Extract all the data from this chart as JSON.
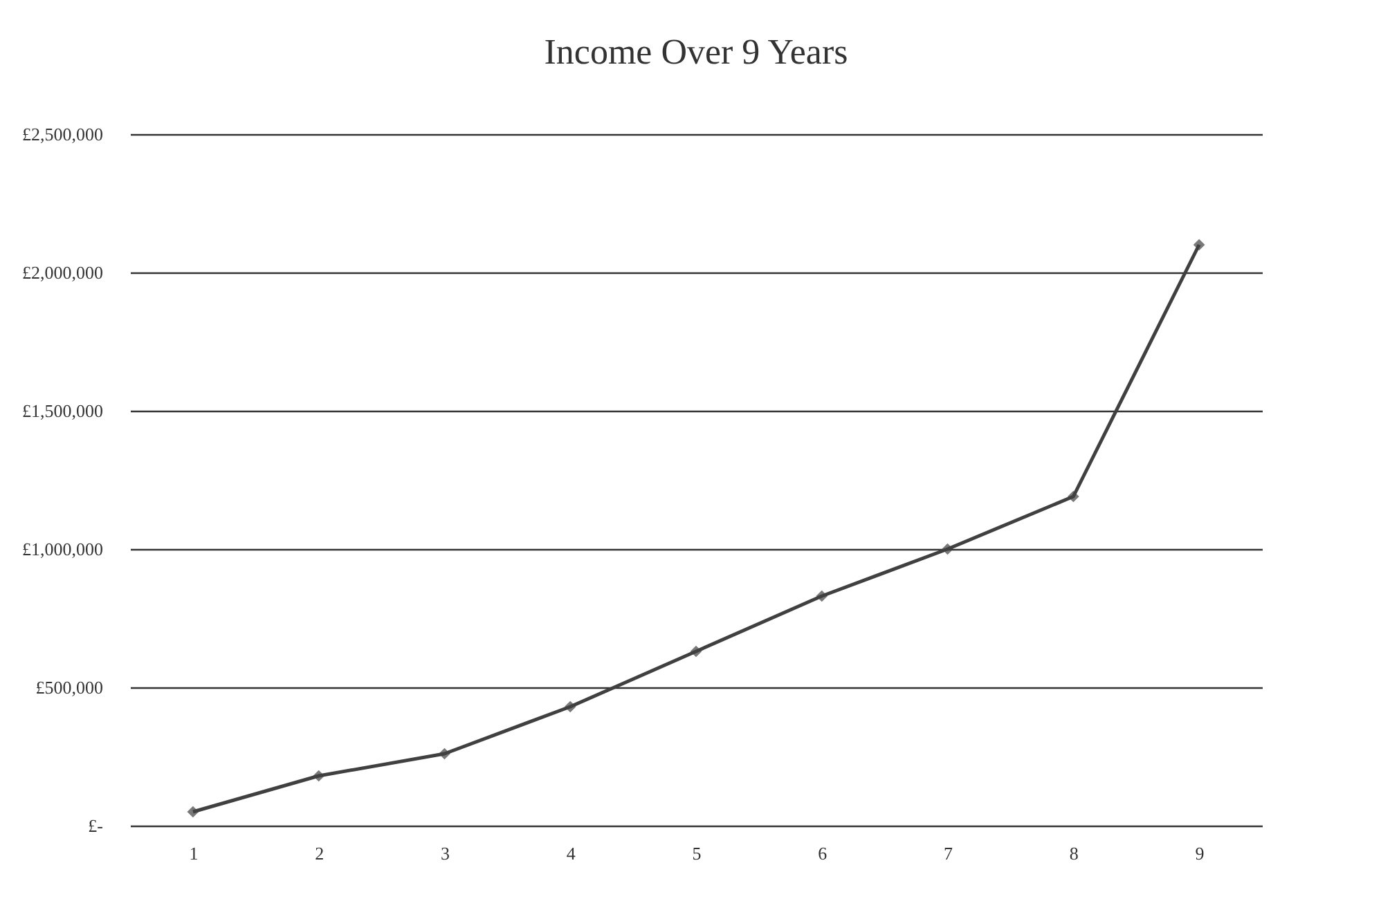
{
  "chart_data": {
    "type": "line",
    "title": "Income Over 9 Years",
    "categories": [
      "1",
      "2",
      "3",
      "4",
      "5",
      "6",
      "7",
      "8",
      "9"
    ],
    "series": [
      {
        "color": "#404040",
        "values": [
          50000,
          180000,
          260000,
          430000,
          630000,
          830000,
          1000000,
          1190000,
          2100000
        ]
      }
    ],
    "ylim": [
      0,
      2500000
    ],
    "yticks": [
      {
        "value": 0,
        "label": "£-"
      },
      {
        "value": 500000,
        "label": "£500,000"
      },
      {
        "value": 1000000,
        "label": "£1,000,000"
      },
      {
        "value": 1500000,
        "label": "£1,500,000"
      },
      {
        "value": 2000000,
        "label": "£2,000,000"
      },
      {
        "value": 2500000,
        "label": "£2,500,000"
      }
    ],
    "grid": "y",
    "marker": "diamond",
    "legend": false
  }
}
